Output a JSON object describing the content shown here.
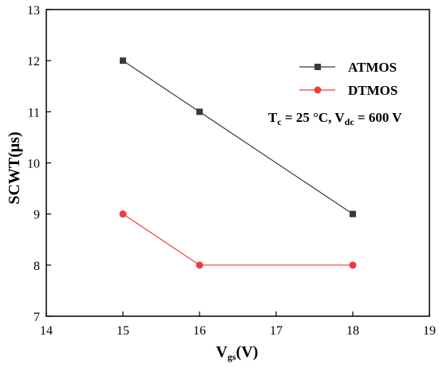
{
  "chart_data": {
    "type": "line",
    "xlabel_main": "V",
    "xlabel_sub": "gs",
    "xlabel_rest": "(V)",
    "ylabel": "SCWT(μs)",
    "xlim": [
      14,
      19
    ],
    "ylim": [
      7,
      13
    ],
    "xticks": [
      14,
      15,
      16,
      17,
      18,
      19
    ],
    "yticks": [
      7,
      8,
      9,
      10,
      11,
      12,
      13
    ],
    "grid": false,
    "legend_position": "top-right",
    "series": [
      {
        "name": "ATMOS",
        "x": [
          15,
          16,
          18
        ],
        "y": [
          12,
          11,
          9
        ],
        "color": "#3a3a3a",
        "marker": "square"
      },
      {
        "name": "DTMOS",
        "x": [
          15,
          16,
          18
        ],
        "y": [
          9,
          8,
          8
        ],
        "color": "#f03c3c",
        "marker": "circle"
      }
    ],
    "annotation": {
      "t_main": "T",
      "t_sub": "c",
      "t_rest": " = 25 °C, ",
      "v_main": "V",
      "v_sub": "dc",
      "v_rest": " = 600 V"
    }
  }
}
